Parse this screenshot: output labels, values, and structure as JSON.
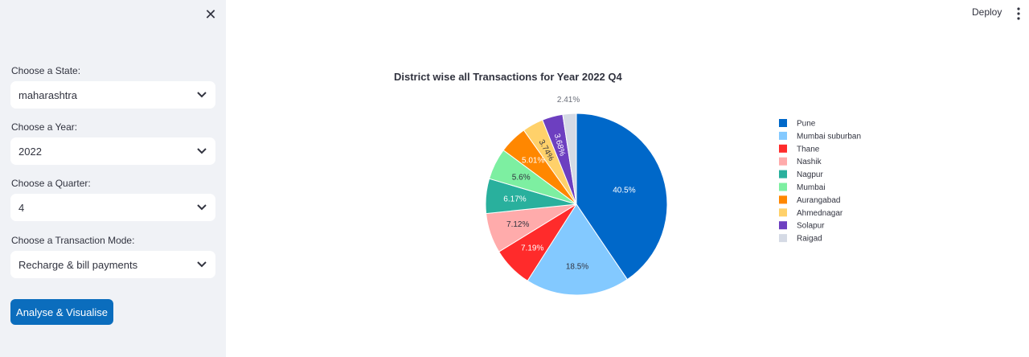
{
  "sidebar": {
    "close_icon": "close-icon",
    "fields": [
      {
        "label": "Choose a State:",
        "value": "maharashtra"
      },
      {
        "label": "Choose a Year:",
        "value": "2022"
      },
      {
        "label": "Choose a Quarter:",
        "value": "4"
      },
      {
        "label": "Choose a Transaction Mode:",
        "value": "Recharge & bill payments"
      }
    ],
    "button_label": "Analyse & Visualise"
  },
  "header": {
    "deploy_label": "Deploy",
    "menu_icon": "vertical-dots-icon"
  },
  "chart_data": {
    "type": "pie",
    "title": "District wise all Transactions for Year 2022 Q4",
    "categories": [
      "Pune",
      "Mumbai suburban",
      "Thane",
      "Nashik",
      "Nagpur",
      "Mumbai",
      "Aurangabad",
      "Ahmednagar",
      "Solapur",
      "Raigad"
    ],
    "values": [
      40.5,
      18.5,
      7.19,
      7.12,
      6.17,
      5.6,
      5.01,
      3.74,
      3.68,
      2.41
    ],
    "labels": [
      "40.5%",
      "18.5%",
      "7.19%",
      "7.12%",
      "6.17%",
      "5.6%",
      "5.01%",
      "3.74%",
      "3.68%",
      "2.41%"
    ],
    "colors": [
      "#0068c9",
      "#83c9ff",
      "#ff2b2b",
      "#ffabab",
      "#29b09d",
      "#7defa1",
      "#ff8700",
      "#ffd16a",
      "#6d3fc0",
      "#d5dae5"
    ],
    "legend_position": "right"
  }
}
